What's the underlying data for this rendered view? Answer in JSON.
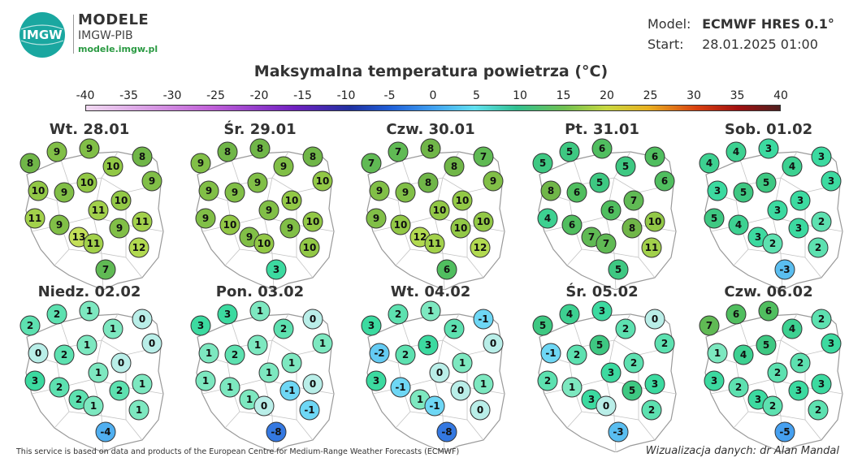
{
  "header": {
    "logo_mark": "IMGW",
    "brand": "MODELE",
    "org": "IMGW-PIB",
    "url": "modele.imgw.pl",
    "model_key": "Model:",
    "model_value": "ECMWF HRES 0.1°",
    "start_key": "Start:",
    "start_value": "28.01.2025 01:00"
  },
  "title": "Maksymalna temperatura powietrza (°C)",
  "scale": {
    "ticks": [
      "-40",
      "-35",
      "-30",
      "-25",
      "-20",
      "-15",
      "-10",
      "-5",
      "0",
      "5",
      "10",
      "15",
      "20",
      "25",
      "30",
      "35",
      "40"
    ],
    "min": -40,
    "max": 40
  },
  "maps": [
    {
      "day": "Wt. 28.01",
      "values": [
        9,
        9,
        8,
        8,
        10,
        9,
        10,
        10,
        9,
        10,
        11,
        11,
        11,
        9,
        13,
        11,
        9,
        12,
        7
      ]
    },
    {
      "day": "Śr. 29.01",
      "values": [
        8,
        8,
        9,
        8,
        9,
        10,
        9,
        9,
        9,
        10,
        9,
        9,
        10,
        10,
        9,
        10,
        9,
        10,
        3
      ]
    },
    {
      "day": "Czw. 30.01",
      "values": [
        7,
        8,
        7,
        7,
        8,
        9,
        8,
        9,
        9,
        10,
        9,
        10,
        10,
        10,
        12,
        11,
        10,
        12,
        6
      ]
    },
    {
      "day": "Pt. 31.01",
      "values": [
        5,
        6,
        5,
        6,
        5,
        6,
        5,
        8,
        6,
        7,
        4,
        6,
        10,
        6,
        7,
        7,
        8,
        11,
        5
      ]
    },
    {
      "day": "Sob. 01.02",
      "values": [
        4,
        3,
        4,
        3,
        4,
        3,
        5,
        3,
        5,
        3,
        5,
        3,
        2,
        4,
        3,
        2,
        3,
        2,
        -3
      ]
    },
    {
      "day": "Niedz. 02.02",
      "values": [
        2,
        1,
        2,
        0,
        1,
        0,
        1,
        0,
        2,
        0,
        3,
        1,
        1,
        2,
        2,
        1,
        2,
        1,
        -4
      ]
    },
    {
      "day": "Pon. 03.02",
      "values": [
        3,
        1,
        3,
        0,
        2,
        1,
        1,
        1,
        2,
        1,
        1,
        1,
        0,
        1,
        1,
        0,
        -1,
        -1,
        -8
      ]
    },
    {
      "day": "Wt. 04.02",
      "values": [
        2,
        1,
        3,
        -1,
        2,
        0,
        3,
        -2,
        2,
        1,
        3,
        0,
        1,
        -1,
        1,
        -1,
        0,
        0,
        -8
      ]
    },
    {
      "day": "Śr. 05.02",
      "values": [
        4,
        3,
        5,
        0,
        2,
        2,
        5,
        -1,
        2,
        2,
        2,
        3,
        3,
        1,
        3,
        0,
        5,
        2,
        -3
      ]
    },
    {
      "day": "Czw. 06.02",
      "values": [
        6,
        6,
        7,
        2,
        4,
        3,
        5,
        1,
        4,
        2,
        3,
        2,
        3,
        2,
        3,
        2,
        3,
        2,
        -5
      ]
    }
  ],
  "footer": {
    "source": "This service is based on data and products of the European Centre for Medium-Range Weather Forecasts (ECMWF)",
    "credit": "Wizualizacja danych: dr Alan Mandal"
  }
}
